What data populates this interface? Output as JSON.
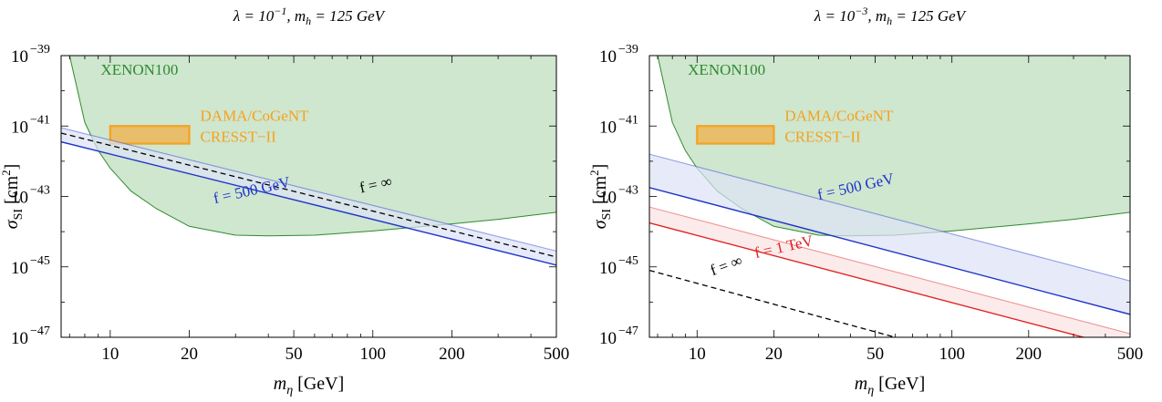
{
  "chart_data": [
    {
      "type": "area",
      "title": "λ = 10⁻¹, mₕ = 125 GeV",
      "title_parts": {
        "lambda": "λ = 10",
        "lambda_exp": "−1",
        "mh_sep": ", m",
        "mh_sub": "h",
        "mh_val": " = 125 GeV"
      },
      "xlabel": "mη [GeV]",
      "xlabel_parts": {
        "main": "m",
        "sub": "η",
        "unit": " [GeV]"
      },
      "ylabel": "σSI [cm²]",
      "ylabel_parts": {
        "main": "σ",
        "sub": "SI",
        "unit_open": " [cm",
        "unit_exp": "2",
        "unit_close": "]"
      },
      "x_scale": "log",
      "y_scale": "log",
      "xlim": [
        6.5,
        500
      ],
      "ylim": [
        1e-47,
        1e-39
      ],
      "x_ticks": [
        10,
        20,
        50,
        100,
        200,
        500
      ],
      "x_tick_labels": [
        "10",
        "20",
        "50",
        "100",
        "200",
        "500"
      ],
      "y_ticks": [
        -47,
        -45,
        -43,
        -41,
        -39
      ],
      "y_tick_base": "10",
      "y_tick_exps": [
        "−47",
        "−45",
        "−43",
        "−41",
        "−39"
      ],
      "xenon": {
        "label": "XENON100",
        "color": "#2e8b2e",
        "fill": "#cfe6cf",
        "boundary": [
          [
            7.0,
            -39
          ],
          [
            8.0,
            -40.9
          ],
          [
            9.0,
            -41.7
          ],
          [
            10.0,
            -42.2
          ],
          [
            12.0,
            -42.85
          ],
          [
            15.0,
            -43.35
          ],
          [
            20.0,
            -43.85
          ],
          [
            30.0,
            -44.1
          ],
          [
            40.0,
            -44.12
          ],
          [
            60.0,
            -44.1
          ],
          [
            100.0,
            -43.98
          ],
          [
            200.0,
            -43.78
          ],
          [
            300.0,
            -43.65
          ],
          [
            500.0,
            -43.45
          ]
        ]
      },
      "dama": {
        "label1": "DAMA/CoGeNT",
        "label2": "CRESST−II",
        "x": [
          10,
          20
        ],
        "y": [
          -41.5,
          -41.0
        ],
        "color": "#f5a21e",
        "fill": "#e8be6a"
      },
      "bands": [
        {
          "name": "f = 500 GeV",
          "color": "#1f33c8",
          "fill": "#dde2f7",
          "lower": [
            [
              6.5,
              -41.45
            ],
            [
              500,
              -44.95
            ]
          ],
          "upper": [
            [
              6.5,
              -41.05
            ],
            [
              500,
              -44.55
            ]
          ],
          "label_x": 25,
          "label_y": -43.2,
          "label_angle": -12.5
        }
      ],
      "lines": [
        {
          "name": "f = ∞",
          "color": "#000000",
          "dashed": true,
          "points": [
            [
              6.5,
              -41.2
            ],
            [
              500,
              -44.72
            ]
          ],
          "label_x": 90,
          "label_y": -42.9,
          "label_angle": -12.5
        }
      ]
    },
    {
      "type": "area",
      "title": "λ = 10⁻³, mₕ = 125 GeV",
      "title_parts": {
        "lambda": "λ = 10",
        "lambda_exp": "−3",
        "mh_sep": ", m",
        "mh_sub": "h",
        "mh_val": " = 125 GeV"
      },
      "xlabel": "mη [GeV]",
      "xlabel_parts": {
        "main": "m",
        "sub": "η",
        "unit": " [GeV]"
      },
      "ylabel": "σSI [cm²]",
      "ylabel_parts": {
        "main": "σ",
        "sub": "SI",
        "unit_open": " [cm",
        "unit_exp": "2",
        "unit_close": "]"
      },
      "x_scale": "log",
      "y_scale": "log",
      "xlim": [
        6.5,
        500
      ],
      "ylim": [
        1e-47,
        1e-39
      ],
      "x_ticks": [
        10,
        20,
        50,
        100,
        200,
        500
      ],
      "x_tick_labels": [
        "10",
        "20",
        "50",
        "100",
        "200",
        "500"
      ],
      "y_ticks": [
        -47,
        -45,
        -43,
        -41,
        -39
      ],
      "y_tick_base": "10",
      "y_tick_exps": [
        "−47",
        "−45",
        "−43",
        "−41",
        "−39"
      ],
      "xenon": {
        "label": "XENON100",
        "color": "#2e8b2e",
        "fill": "#cfe6cf",
        "boundary": [
          [
            7.0,
            -39
          ],
          [
            8.0,
            -40.9
          ],
          [
            9.0,
            -41.7
          ],
          [
            10.0,
            -42.2
          ],
          [
            12.0,
            -42.85
          ],
          [
            15.0,
            -43.35
          ],
          [
            20.0,
            -43.85
          ],
          [
            30.0,
            -44.1
          ],
          [
            40.0,
            -44.12
          ],
          [
            60.0,
            -44.1
          ],
          [
            100.0,
            -43.98
          ],
          [
            200.0,
            -43.78
          ],
          [
            300.0,
            -43.65
          ],
          [
            500.0,
            -43.45
          ]
        ]
      },
      "dama": {
        "label1": "DAMA/CoGeNT",
        "label2": "CRESST−II",
        "x": [
          10,
          20
        ],
        "y": [
          -41.5,
          -41.0
        ],
        "color": "#f5a21e",
        "fill": "#e8be6a"
      },
      "bands": [
        {
          "name": "f = 500 GeV",
          "color": "#1f33c8",
          "fill": "#dde2f7",
          "lower": [
            [
              6.5,
              -42.75
            ],
            [
              500,
              -46.35
            ]
          ],
          "upper": [
            [
              6.5,
              -41.8
            ],
            [
              500,
              -45.4
            ]
          ],
          "label_x": 30,
          "label_y": -43.1,
          "label_angle": -12.5
        },
        {
          "name": "f = 1 TeV",
          "color": "#e02020",
          "fill": "#fbe3e3",
          "lower": [
            [
              6.5,
              -43.75
            ],
            [
              500,
              -47.35
            ]
          ],
          "upper": [
            [
              6.5,
              -43.3
            ],
            [
              500,
              -46.9
            ]
          ],
          "label_x": 17,
          "label_y": -44.75,
          "label_angle": -12.5
        }
      ],
      "lines": [
        {
          "name": "f = ∞",
          "color": "#000000",
          "dashed": true,
          "points": [
            [
              6.5,
              -45.1
            ],
            [
              60,
              -47
            ]
          ],
          "label_x": 11.5,
          "label_y": -45.25,
          "label_angle": -20
        }
      ]
    }
  ]
}
